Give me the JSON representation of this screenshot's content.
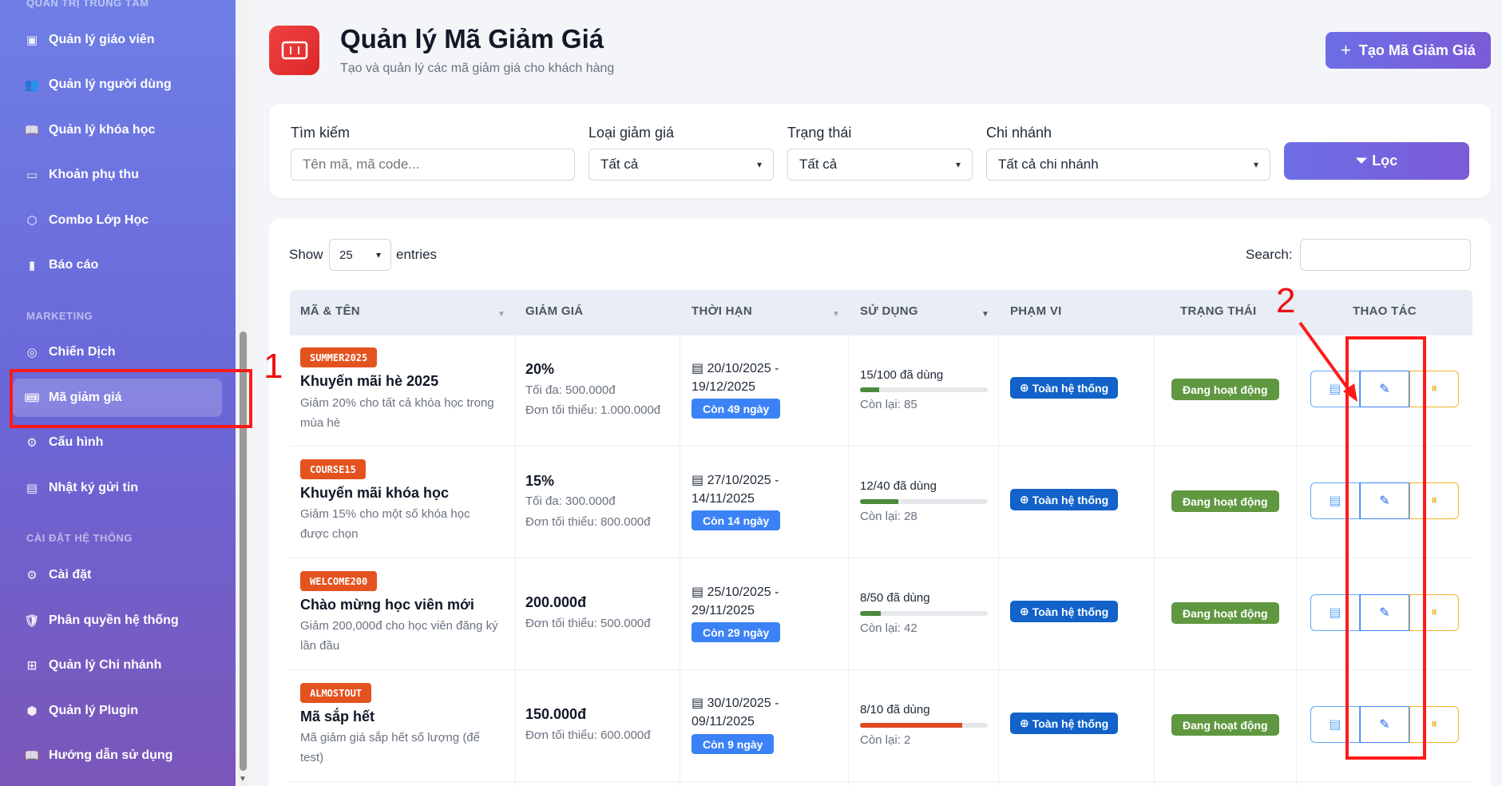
{
  "sidebar": {
    "section_top": "QUẢN TRỊ TRUNG TÂM",
    "section_marketing": "MARKETING",
    "section_system": "CÀI ĐẶT HỆ THỐNG",
    "items": [
      {
        "label": "Quản lý giáo viên",
        "icon": "teacher-icon"
      },
      {
        "label": "Quản lý người dùng",
        "icon": "users-icon"
      },
      {
        "label": "Quản lý khóa học",
        "icon": "book-icon"
      },
      {
        "label": "Khoản phụ thu",
        "icon": "wallet-icon"
      },
      {
        "label": "Combo Lớp Học",
        "icon": "box-icon"
      },
      {
        "label": "Báo cáo",
        "icon": "chart-icon"
      },
      {
        "label": "Chiến Dịch",
        "icon": "target-icon"
      },
      {
        "label": "Mã giảm giá",
        "icon": "ticket-icon",
        "active": true
      },
      {
        "label": "Cấu hình",
        "icon": "gear-icon"
      },
      {
        "label": "Nhật ký gửi tin",
        "icon": "log-icon"
      },
      {
        "label": "Cài đặt",
        "icon": "settings-icon"
      },
      {
        "label": "Phân quyền hệ thống",
        "icon": "shield-icon"
      },
      {
        "label": "Quản lý Chi nhánh",
        "icon": "sitemap-icon"
      },
      {
        "label": "Quản lý Plugin",
        "icon": "plugin-icon"
      },
      {
        "label": "Hướng dẫn sử dụng",
        "icon": "guide-icon"
      }
    ]
  },
  "header": {
    "title": "Quản lý Mã Giảm Giá",
    "subtitle": "Tạo và quản lý các mã giảm giá cho khách hàng",
    "create_label": "Tạo Mã Giảm Giá"
  },
  "filters": {
    "search_label": "Tìm kiếm",
    "search_placeholder": "Tên mã, mã code...",
    "type_label": "Loại giảm giá",
    "type_value": "Tất cả",
    "status_label": "Trạng thái",
    "status_value": "Tất cả",
    "branch_label": "Chi nhánh",
    "branch_value": "Tất cả chi nhánh",
    "filter_label": "Lọc"
  },
  "table": {
    "show_label": "Show",
    "show_value": "25",
    "entries_label": "entries",
    "search_label": "Search:",
    "headers": [
      "MÃ & TÊN",
      "GIẢM GIÁ",
      "THỜI HẠN",
      "SỬ DỤNG",
      "PHẠM VI",
      "TRẠNG THÁI",
      "THAO TÁC"
    ],
    "rows": [
      {
        "code": "SUMMER2025",
        "name": "Khuyến mãi hè 2025",
        "desc": "Giảm 20% cho tất cả khóa học trong mùa hè",
        "discount": "20%",
        "max": "Tối đa: 500.000đ",
        "min": "Đơn tối thiểu: 1.000.000đ",
        "date_from": "20/10/2025 -",
        "date_to": "19/12/2025",
        "remaining_days": "Còn 49 ngày",
        "usage": "15/100 đã dùng",
        "usage_fraction": 0.15,
        "left": "Còn lại: 85",
        "scope": "Toàn hệ thống",
        "status": "Đang hoạt động"
      },
      {
        "code": "COURSE15",
        "name": "Khuyến mãi khóa học",
        "desc": "Giảm 15% cho một số khóa học được chọn",
        "discount": "15%",
        "max": "Tối đa: 300.000đ",
        "min": "Đơn tối thiểu: 800.000đ",
        "date_from": "27/10/2025 -",
        "date_to": "14/11/2025",
        "remaining_days": "Còn 14 ngày",
        "usage": "12/40 đã dùng",
        "usage_fraction": 0.3,
        "left": "Còn lại: 28",
        "scope": "Toàn hệ thống",
        "status": "Đang hoạt động"
      },
      {
        "code": "WELCOME200",
        "name": "Chào mừng học viên mới",
        "desc": "Giảm 200,000đ cho học viên đăng ký lần đầu",
        "discount": "200.000đ",
        "max": "",
        "min": "Đơn tối thiểu: 500.000đ",
        "date_from": "25/10/2025 -",
        "date_to": "29/11/2025",
        "remaining_days": "Còn 29 ngày",
        "usage": "8/50 đã dùng",
        "usage_fraction": 0.16,
        "left": "Còn lại: 42",
        "scope": "Toàn hệ thống",
        "status": "Đang hoạt động"
      },
      {
        "code": "ALMOSTOUT",
        "name": "Mã sắp hết",
        "desc": "Mã giảm giá sắp hết số lượng (để test)",
        "discount": "150.000đ",
        "max": "",
        "min": "Đơn tối thiểu: 600.000đ",
        "date_from": "30/10/2025 -",
        "date_to": "09/11/2025",
        "remaining_days": "Còn 9 ngày",
        "usage": "8/10 đã dùng",
        "usage_fraction": 0.8,
        "left": "Còn lại: 2",
        "scope": "Toàn hệ thống",
        "status": "Đang hoạt động"
      }
    ]
  },
  "annotations": {
    "label_1": "1",
    "label_2": "2"
  },
  "colors": {
    "accent": "#6d6ee6",
    "code_badge": "#e4531f",
    "scope_badge": "#1262c9",
    "status_badge": "#5f9840",
    "days_badge": "#3b82f6",
    "annotation": "#ff1a1a"
  }
}
